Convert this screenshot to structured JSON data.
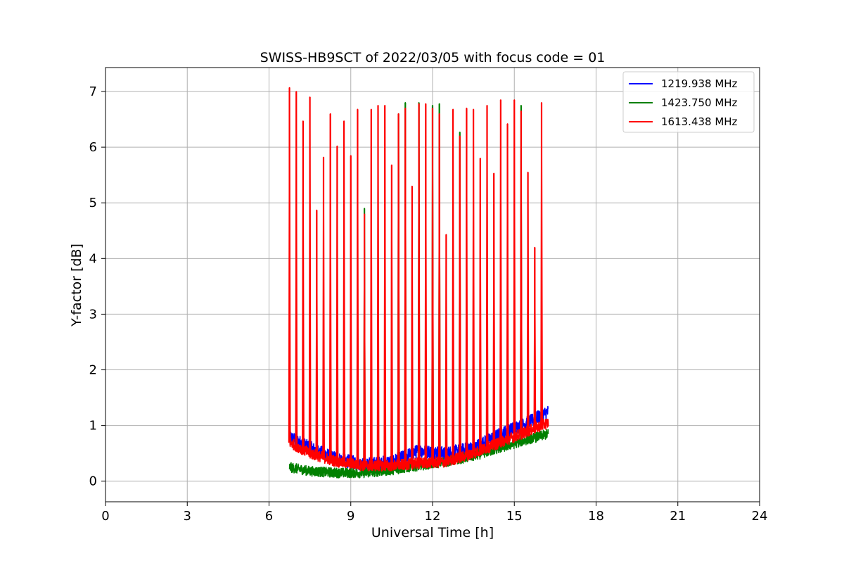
{
  "chart_data": {
    "type": "line",
    "title": "SWISS-HB9SCT of 2022/03/05 with focus code = 01",
    "xlabel": "Universal Time [h]",
    "ylabel": "Y-factor [dB]",
    "xlim": [
      0,
      24
    ],
    "ylim": [
      -0.37,
      7.43
    ],
    "xticks": [
      0,
      3,
      6,
      9,
      12,
      15,
      18,
      21,
      24
    ],
    "yticks": [
      0,
      1,
      2,
      3,
      4,
      5,
      6,
      7
    ],
    "grid": true,
    "legend_position": "top-right",
    "series": [
      {
        "name": "1219.938 MHz",
        "color": "#0000ff",
        "baseline_x": [
          6.75,
          7.5,
          8.5,
          9.5,
          10.5,
          11.5,
          12.5,
          13.5,
          14.5,
          15.5,
          16.25
        ],
        "baseline_y": [
          0.8,
          0.6,
          0.4,
          0.3,
          0.35,
          0.55,
          0.5,
          0.6,
          0.85,
          1.05,
          1.25
        ],
        "noise_amplitude": 0.12,
        "peaks": []
      },
      {
        "name": "1423.750 MHz",
        "color": "#008000",
        "baseline_x": [
          6.75,
          7.5,
          8.5,
          9.5,
          10.5,
          11.5,
          12.5,
          13.5,
          14.5,
          15.5,
          16.25
        ],
        "baseline_y": [
          0.25,
          0.18,
          0.15,
          0.15,
          0.2,
          0.28,
          0.35,
          0.45,
          0.6,
          0.75,
          0.85
        ],
        "noise_amplitude": 0.09,
        "peaks": [
          {
            "x": 9.5,
            "y": 4.9
          },
          {
            "x": 10.75,
            "y": 6.6
          },
          {
            "x": 11.0,
            "y": 6.8
          },
          {
            "x": 11.5,
            "y": 6.8
          },
          {
            "x": 12.0,
            "y": 6.75
          },
          {
            "x": 12.25,
            "y": 6.78
          },
          {
            "x": 13.0,
            "y": 6.27
          },
          {
            "x": 15.25,
            "y": 6.75
          }
        ]
      },
      {
        "name": "1613.438 MHz",
        "color": "#ff0000",
        "baseline_x": [
          6.75,
          7.5,
          8.5,
          9.5,
          10.5,
          11.5,
          12.5,
          13.5,
          14.5,
          15.5,
          16.25
        ],
        "baseline_y": [
          0.7,
          0.5,
          0.35,
          0.28,
          0.28,
          0.32,
          0.35,
          0.5,
          0.7,
          0.9,
          1.05
        ],
        "noise_amplitude": 0.1,
        "peaks": [
          {
            "x": 6.75,
            "y": 7.07
          },
          {
            "x": 7.0,
            "y": 7.0
          },
          {
            "x": 7.25,
            "y": 6.47
          },
          {
            "x": 7.5,
            "y": 6.9
          },
          {
            "x": 7.75,
            "y": 4.87
          },
          {
            "x": 8.0,
            "y": 5.82
          },
          {
            "x": 8.25,
            "y": 6.6
          },
          {
            "x": 8.5,
            "y": 6.02
          },
          {
            "x": 8.75,
            "y": 6.47
          },
          {
            "x": 9.0,
            "y": 5.85
          },
          {
            "x": 9.25,
            "y": 6.68
          },
          {
            "x": 9.5,
            "y": 4.8
          },
          {
            "x": 9.75,
            "y": 6.68
          },
          {
            "x": 10.0,
            "y": 6.75
          },
          {
            "x": 10.25,
            "y": 6.75
          },
          {
            "x": 10.5,
            "y": 5.68
          },
          {
            "x": 10.75,
            "y": 6.6
          },
          {
            "x": 11.0,
            "y": 6.7
          },
          {
            "x": 11.25,
            "y": 5.3
          },
          {
            "x": 11.5,
            "y": 6.78
          },
          {
            "x": 11.75,
            "y": 6.78
          },
          {
            "x": 12.0,
            "y": 6.7
          },
          {
            "x": 12.25,
            "y": 6.6
          },
          {
            "x": 12.5,
            "y": 4.43
          },
          {
            "x": 12.75,
            "y": 6.68
          },
          {
            "x": 13.0,
            "y": 6.2
          },
          {
            "x": 13.25,
            "y": 6.7
          },
          {
            "x": 13.5,
            "y": 6.68
          },
          {
            "x": 13.75,
            "y": 5.8
          },
          {
            "x": 14.0,
            "y": 6.75
          },
          {
            "x": 14.25,
            "y": 5.53
          },
          {
            "x": 14.5,
            "y": 6.85
          },
          {
            "x": 14.75,
            "y": 6.42
          },
          {
            "x": 15.0,
            "y": 6.85
          },
          {
            "x": 15.25,
            "y": 6.65
          },
          {
            "x": 15.5,
            "y": 5.55
          },
          {
            "x": 15.75,
            "y": 4.2
          },
          {
            "x": 16.0,
            "y": 6.8
          }
        ]
      }
    ]
  }
}
